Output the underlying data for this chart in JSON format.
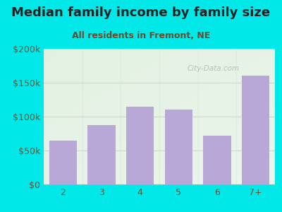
{
  "title": "Median family income by family size",
  "subtitle": "All residents in Fremont, NE",
  "categories": [
    "2",
    "3",
    "4",
    "5",
    "6",
    "7+"
  ],
  "values": [
    65000,
    88000,
    115000,
    110000,
    72000,
    160000
  ],
  "bar_color": "#b8a8d8",
  "ylim": [
    0,
    200000
  ],
  "yticks": [
    0,
    50000,
    100000,
    150000,
    200000
  ],
  "ytick_labels": [
    "$0",
    "$50k",
    "$100k",
    "$150k",
    "$200k"
  ],
  "background_outer": "#00e8e8",
  "title_color": "#222222",
  "subtitle_color": "#6b4c2a",
  "tick_color": "#6b5030",
  "grid_color": "#d0d8c0",
  "watermark": "City-Data.com",
  "col_bg_color": "#ddeedd",
  "title_fontsize": 13,
  "subtitle_fontsize": 9
}
